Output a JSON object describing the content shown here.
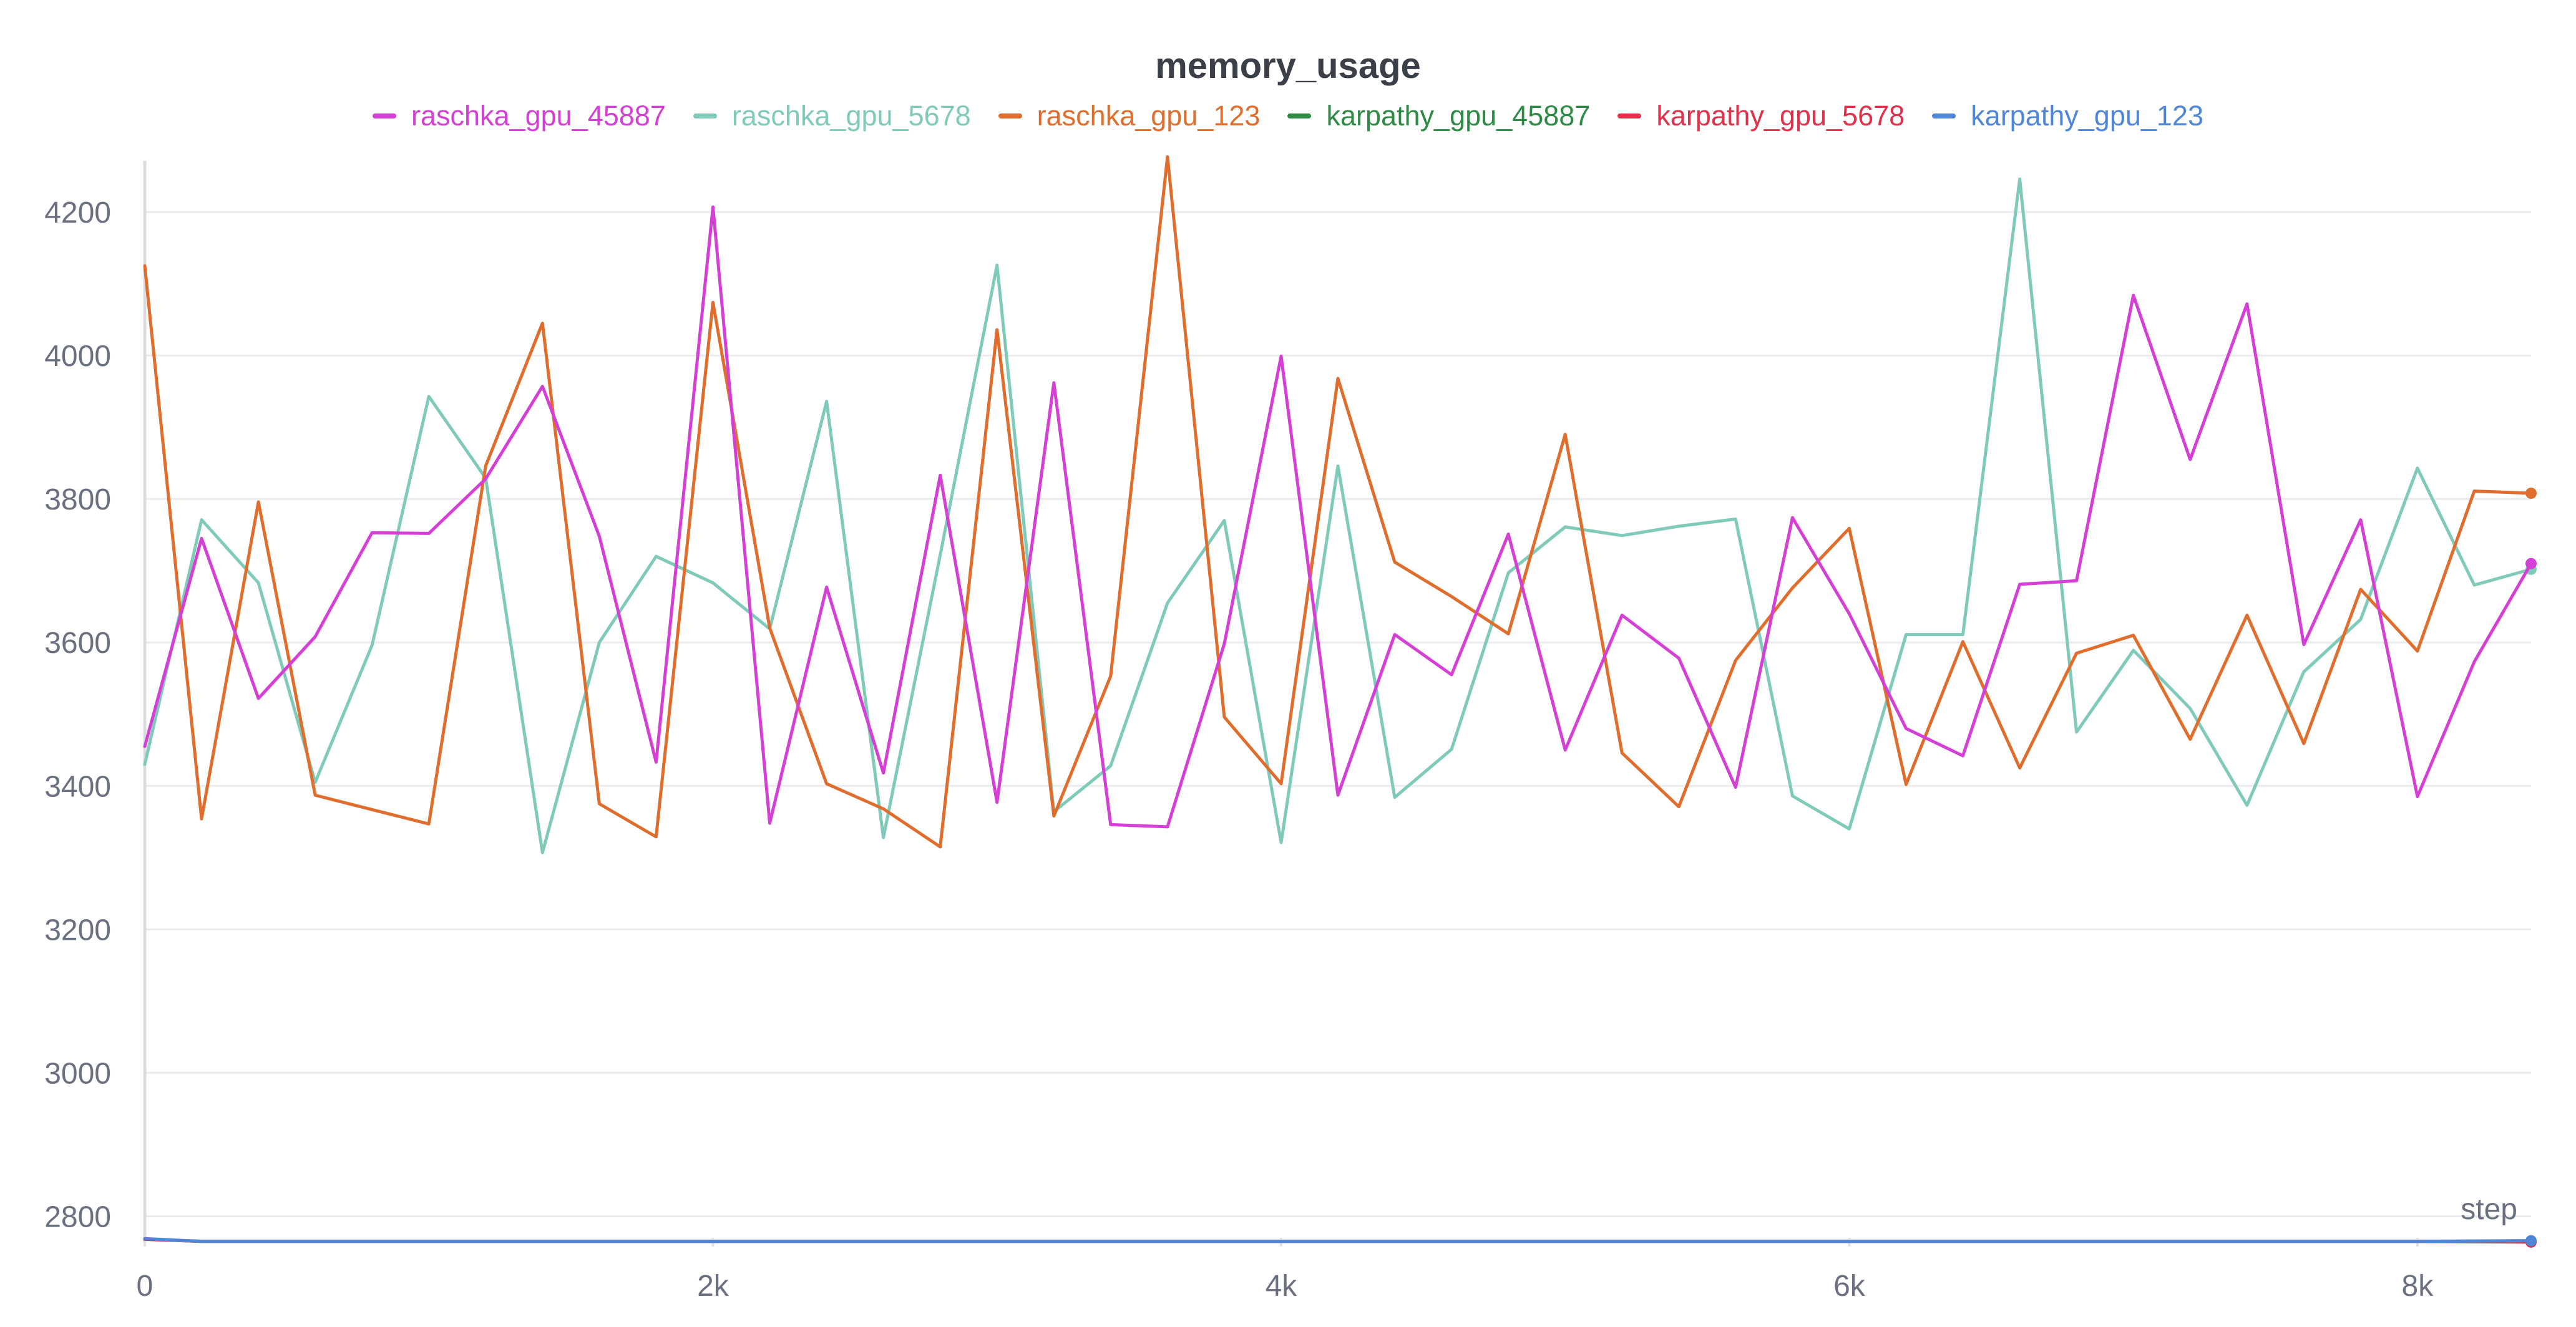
{
  "chart_data": {
    "type": "line",
    "title": "memory_usage",
    "xlabel": "step",
    "ylabel": "",
    "xlim": [
      0,
      8400
    ],
    "ylim": [
      2770,
      4280
    ],
    "x_ticks": [
      0,
      2000,
      4000,
      6000,
      8000
    ],
    "x_tick_labels": [
      "0",
      "2k",
      "4k",
      "6k",
      "8k"
    ],
    "y_ticks": [
      2800,
      3000,
      3200,
      3400,
      3600,
      3800,
      4000,
      4200
    ],
    "y_tick_labels": [
      "2800",
      "3000",
      "3200",
      "3400",
      "3600",
      "3800",
      "4000",
      "4200"
    ],
    "grid": true,
    "legend_position": "top-center",
    "series": [
      {
        "name": "raschka_gpu_45887",
        "color": "#d63fd6",
        "points": [
          [
            0,
            3455
          ],
          [
            200,
            3745
          ],
          [
            400,
            3522
          ],
          [
            600,
            3608
          ],
          [
            800,
            3753
          ],
          [
            1000,
            3752
          ],
          [
            1200,
            3828
          ],
          [
            1400,
            3957
          ],
          [
            1600,
            3748
          ],
          [
            1800,
            3433
          ],
          [
            2000,
            4207
          ],
          [
            2200,
            3348
          ],
          [
            2400,
            3677
          ],
          [
            2600,
            3418
          ],
          [
            2800,
            3833
          ],
          [
            3000,
            3377
          ],
          [
            3200,
            3962
          ],
          [
            3400,
            3346
          ],
          [
            3600,
            3343
          ],
          [
            3800,
            3598
          ],
          [
            4000,
            3999
          ],
          [
            4200,
            3387
          ],
          [
            4400,
            3611
          ],
          [
            4600,
            3555
          ],
          [
            4800,
            3751
          ],
          [
            5000,
            3450
          ],
          [
            5200,
            3638
          ],
          [
            5400,
            3578
          ],
          [
            5600,
            3398
          ],
          [
            5800,
            3774
          ],
          [
            6000,
            3640
          ],
          [
            6200,
            3480
          ],
          [
            6400,
            3442
          ],
          [
            6600,
            3681
          ],
          [
            6800,
            3686
          ],
          [
            7000,
            4084
          ],
          [
            7200,
            3855
          ],
          [
            7400,
            4072
          ],
          [
            7600,
            3597
          ],
          [
            7800,
            3771
          ],
          [
            8000,
            3385
          ],
          [
            8200,
            3573
          ],
          [
            8400,
            3710
          ]
        ]
      },
      {
        "name": "raschka_gpu_5678",
        "color": "#7fcab8",
        "points": [
          [
            0,
            3430
          ],
          [
            200,
            3771
          ],
          [
            400,
            3683
          ],
          [
            600,
            3405
          ],
          [
            800,
            3596
          ],
          [
            1000,
            3943
          ],
          [
            1200,
            3829
          ],
          [
            1400,
            3307
          ],
          [
            1600,
            3600
          ],
          [
            1800,
            3720
          ],
          [
            2000,
            3683
          ],
          [
            2200,
            3619
          ],
          [
            2400,
            3936
          ],
          [
            2600,
            3328
          ],
          [
            2800,
            3722
          ],
          [
            3000,
            4126
          ],
          [
            3200,
            3364
          ],
          [
            3400,
            3428
          ],
          [
            3600,
            3655
          ],
          [
            3800,
            3770
          ],
          [
            4000,
            3321
          ],
          [
            4200,
            3846
          ],
          [
            4400,
            3384
          ],
          [
            4600,
            3451
          ],
          [
            4800,
            3697
          ],
          [
            5000,
            3761
          ],
          [
            5200,
            3749
          ],
          [
            5400,
            3762
          ],
          [
            5600,
            3772
          ],
          [
            5800,
            3386
          ],
          [
            6000,
            3340
          ],
          [
            6200,
            3611
          ],
          [
            6400,
            3611
          ],
          [
            6600,
            4246
          ],
          [
            6800,
            3475
          ],
          [
            7000,
            3589
          ],
          [
            7200,
            3508
          ],
          [
            7400,
            3373
          ],
          [
            7600,
            3559
          ],
          [
            7800,
            3632
          ],
          [
            8000,
            3843
          ],
          [
            8200,
            3680
          ],
          [
            8400,
            3702
          ]
        ]
      },
      {
        "name": "raschka_gpu_123",
        "color": "#e06d2c",
        "points": [
          [
            0,
            4125
          ],
          [
            200,
            3354
          ],
          [
            400,
            3796
          ],
          [
            600,
            3387
          ],
          [
            800,
            3367
          ],
          [
            1000,
            3347
          ],
          [
            1200,
            3846
          ],
          [
            1400,
            4045
          ],
          [
            1600,
            3375
          ],
          [
            1800,
            3329
          ],
          [
            2000,
            4074
          ],
          [
            2200,
            3620
          ],
          [
            2400,
            3403
          ],
          [
            2600,
            3368
          ],
          [
            2800,
            3315
          ],
          [
            3000,
            4036
          ],
          [
            3200,
            3358
          ],
          [
            3400,
            3553
          ],
          [
            3600,
            4277
          ],
          [
            3800,
            3496
          ],
          [
            4000,
            3403
          ],
          [
            4200,
            3968
          ],
          [
            4400,
            3712
          ],
          [
            4600,
            3664
          ],
          [
            4800,
            3612
          ],
          [
            5000,
            3890
          ],
          [
            5200,
            3446
          ],
          [
            5400,
            3371
          ],
          [
            5600,
            3575
          ],
          [
            5800,
            3676
          ],
          [
            6000,
            3759
          ],
          [
            6200,
            3402
          ],
          [
            6400,
            3601
          ],
          [
            6600,
            3425
          ],
          [
            6800,
            3585
          ],
          [
            7000,
            3610
          ],
          [
            7200,
            3465
          ],
          [
            7400,
            3638
          ],
          [
            7600,
            3459
          ],
          [
            7800,
            3674
          ],
          [
            8000,
            3588
          ],
          [
            8200,
            3811
          ],
          [
            8400,
            3808
          ]
        ]
      },
      {
        "name": "karpathy_gpu_45887",
        "color": "#2e8b45",
        "points": [
          [
            0,
            2768
          ],
          [
            200,
            2765
          ],
          [
            1000,
            2765
          ],
          [
            2000,
            2765
          ],
          [
            3000,
            2765
          ],
          [
            4000,
            2765
          ],
          [
            5000,
            2765
          ],
          [
            6000,
            2765
          ],
          [
            7000,
            2765
          ],
          [
            8000,
            2765
          ],
          [
            8400,
            2765
          ]
        ]
      },
      {
        "name": "karpathy_gpu_5678",
        "color": "#e0304a",
        "points": [
          [
            0,
            2768
          ],
          [
            200,
            2765
          ],
          [
            1000,
            2765
          ],
          [
            2000,
            2765
          ],
          [
            3000,
            2765
          ],
          [
            4000,
            2765
          ],
          [
            5000,
            2765
          ],
          [
            6000,
            2765
          ],
          [
            7000,
            2765
          ],
          [
            8000,
            2765
          ],
          [
            8400,
            2764
          ]
        ]
      },
      {
        "name": "karpathy_gpu_123",
        "color": "#4f86d9",
        "points": [
          [
            0,
            2769
          ],
          [
            200,
            2765
          ],
          [
            1000,
            2765
          ],
          [
            2000,
            2765
          ],
          [
            3000,
            2765
          ],
          [
            4000,
            2765
          ],
          [
            5000,
            2765
          ],
          [
            6000,
            2765
          ],
          [
            7000,
            2765
          ],
          [
            8000,
            2765
          ],
          [
            8400,
            2766
          ]
        ]
      }
    ]
  }
}
